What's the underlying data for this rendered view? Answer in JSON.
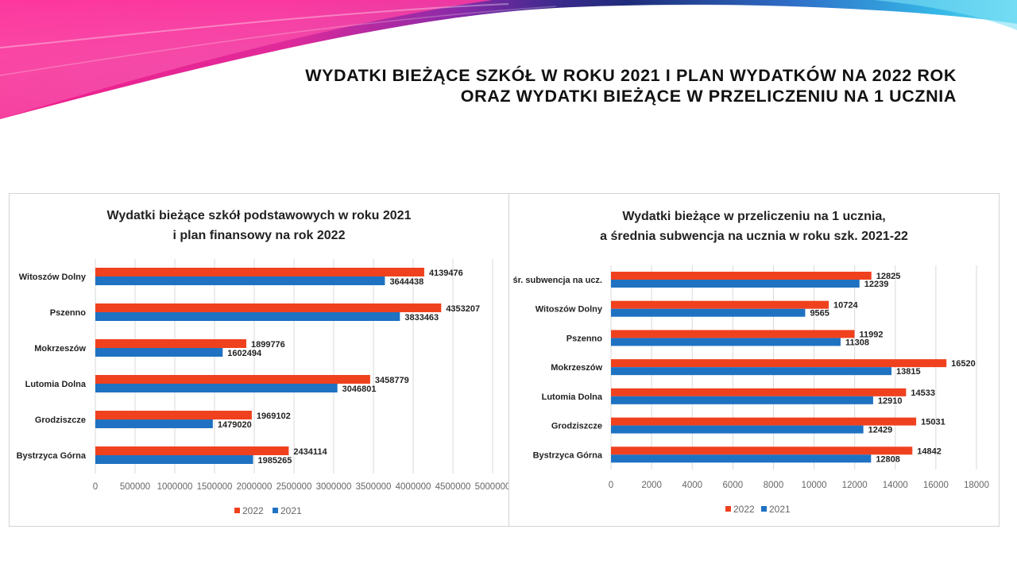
{
  "slide": {
    "title_line1": "WYDATKI BIEŻĄCE SZKÓŁ W ROKU 2021 I PLAN WYDATKÓW NA 2022 ROK",
    "title_line2": "ORAZ WYDATKI BIEŻĄCE W PRZELICZENIU NA 1 UCZNIA"
  },
  "colors": {
    "series_2022": "#f0411e",
    "series_2021": "#1f72c2",
    "grid": "#d9d9d9",
    "text": "#222222",
    "axis_text": "#666666"
  },
  "chart_data": [
    {
      "type": "bar",
      "orientation": "horizontal",
      "title_line1": "Wydatki bieżące szkół podstawowych w roku 2021",
      "title_line2": "i plan finansowy na rok 2022",
      "categories": [
        "Witoszów Dolny",
        "Pszenno",
        "Mokrzeszów",
        "Lutomia Dolna",
        "Grodziszcze",
        "Bystrzyca Górna"
      ],
      "series": [
        {
          "name": "2022",
          "values": [
            4139476,
            4353207,
            1899776,
            3458779,
            1969102,
            2434114
          ]
        },
        {
          "name": "2021",
          "values": [
            3644438,
            3833463,
            1602494,
            3046801,
            1479020,
            1985265
          ]
        }
      ],
      "xlim": [
        0,
        5000000
      ],
      "xticks": [
        0,
        500000,
        1000000,
        1500000,
        2000000,
        2500000,
        3000000,
        3500000,
        4000000,
        4500000,
        5000000
      ],
      "grid": true,
      "legend": "bottom"
    },
    {
      "type": "bar",
      "orientation": "horizontal",
      "title_line1": "Wydatki bieżące w przeliczeniu na 1 ucznia,",
      "title_line2": "a średnia subwencja na ucznia w roku szk. 2021-22",
      "categories": [
        "śr. subwencja na ucz.",
        "Witoszów Dolny",
        "Pszenno",
        "Mokrzeszów",
        "Lutomia Dolna",
        "Grodziszcze",
        "Bystrzyca Górna"
      ],
      "series": [
        {
          "name": "2022",
          "values": [
            12825,
            10724,
            11992,
            16520,
            14533,
            15031,
            14842
          ]
        },
        {
          "name": "2021",
          "values": [
            12239,
            9565,
            11308,
            13815,
            12910,
            12429,
            12808
          ]
        }
      ],
      "xlim": [
        0,
        18000
      ],
      "xticks": [
        0,
        2000,
        4000,
        6000,
        8000,
        10000,
        12000,
        14000,
        16000,
        18000
      ],
      "grid": true,
      "legend": "bottom"
    }
  ]
}
